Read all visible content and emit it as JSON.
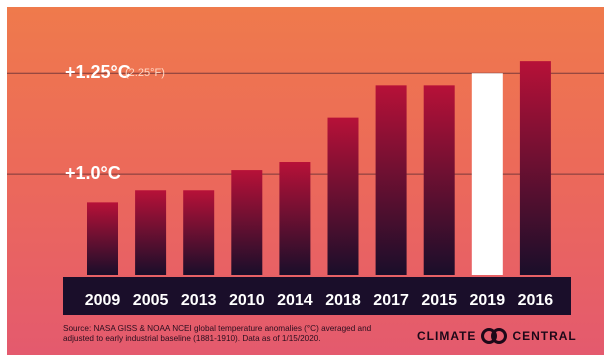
{
  "chart_data": {
    "type": "bar",
    "title": "",
    "xlabel": "",
    "ylabel": "",
    "categories": [
      "2009",
      "2005",
      "2013",
      "2010",
      "2014",
      "2018",
      "2017",
      "2015",
      "2019",
      "2016"
    ],
    "values": [
      0.93,
      0.96,
      0.96,
      1.01,
      1.03,
      1.14,
      1.22,
      1.22,
      1.25,
      1.28
    ],
    "highlight": "2019",
    "ylim": [
      0.75,
      1.32
    ],
    "yticks": [
      {
        "value": 1.0,
        "label": "+1.0°C",
        "sublabel": ""
      },
      {
        "value": 1.25,
        "label": "+1.25°C",
        "sublabel": "(2.25°F)"
      }
    ],
    "grid": true,
    "colors": {
      "bar_top": "#b71138",
      "bar_bottom": "#1a0e2a",
      "highlight": "#ffffff",
      "category_band": "#1a0e2a",
      "gridline": "#7a3a3a"
    }
  },
  "footer": {
    "source": "Source: NASA GISS & NOAA NCEI global temperature anomalies (°C) averaged and adjusted to early industrial baseline (1881-1910). Data as of 1/15/2020.",
    "brand_left": "CLIMATE",
    "brand_right": "CENTRAL",
    "brand_icon": "climate-central-logo-icon"
  }
}
